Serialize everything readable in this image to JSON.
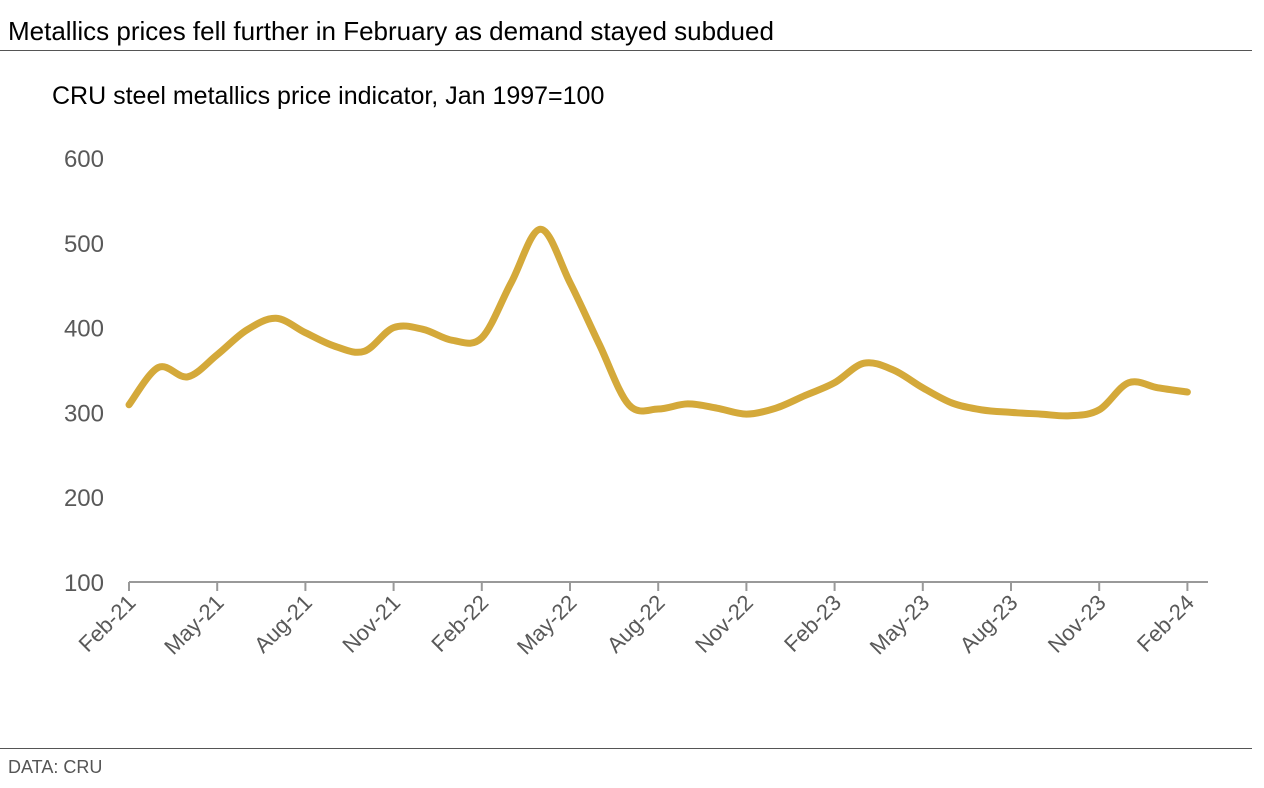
{
  "title": "Metallics prices fell further in February as demand stayed subdued",
  "source": "DATA: CRU",
  "chart_data": {
    "type": "line",
    "title": "Metallics prices fell further in February as demand stayed subdued",
    "subtitle": "CRU steel metallics price indicator, Jan 1997=100",
    "xlabel": "",
    "ylabel": "",
    "ylim": [
      100,
      600
    ],
    "yticks": [
      100,
      200,
      300,
      400,
      500,
      600
    ],
    "xtick_labels": [
      "Feb-21",
      "May-21",
      "Aug-21",
      "Nov-21",
      "Feb-22",
      "May-22",
      "Aug-22",
      "Nov-22",
      "Feb-23",
      "May-23",
      "Aug-23",
      "Nov-23",
      "Feb-24"
    ],
    "grid": false,
    "line_color": "#D4A93A",
    "x": [
      "Feb-21",
      "Mar-21",
      "Apr-21",
      "May-21",
      "Jun-21",
      "Jul-21",
      "Aug-21",
      "Sep-21",
      "Oct-21",
      "Nov-21",
      "Dec-21",
      "Jan-22",
      "Feb-22",
      "Mar-22",
      "Apr-22",
      "May-22",
      "Jun-22",
      "Jul-22",
      "Aug-22",
      "Sep-22",
      "Oct-22",
      "Nov-22",
      "Dec-22",
      "Jan-23",
      "Feb-23",
      "Mar-23",
      "Apr-23",
      "May-23",
      "Jun-23",
      "Jul-23",
      "Aug-23",
      "Sep-23",
      "Oct-23",
      "Nov-23",
      "Dec-23",
      "Jan-24",
      "Feb-24"
    ],
    "values": [
      309,
      353,
      342,
      368,
      397,
      411,
      394,
      378,
      372,
      400,
      398,
      385,
      388,
      453,
      516,
      453,
      380,
      309,
      304,
      310,
      305,
      298,
      305,
      320,
      335,
      358,
      350,
      329,
      311,
      303,
      300,
      298,
      296,
      303,
      335,
      329,
      324
    ]
  }
}
